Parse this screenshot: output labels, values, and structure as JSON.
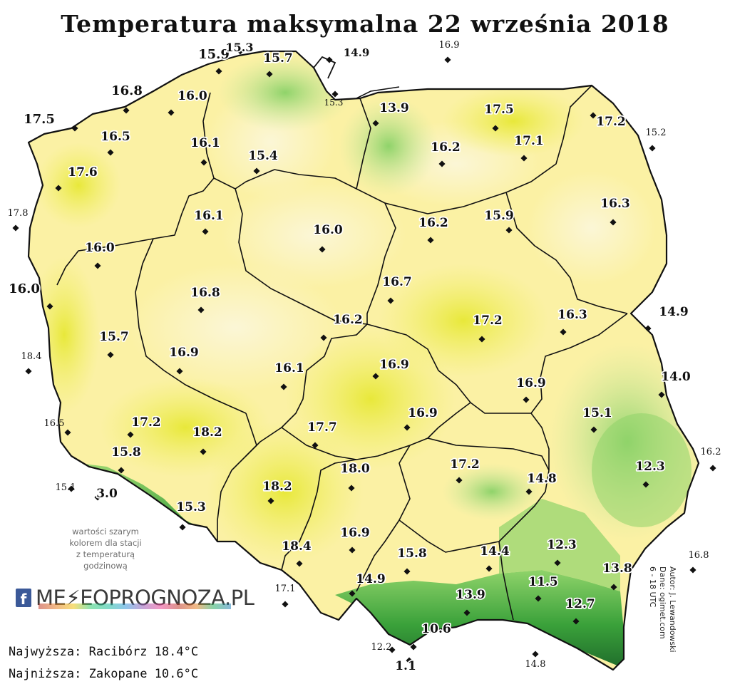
{
  "title": "Temperatura maksymalna 22 września 2018",
  "colors": {
    "background": "#ffffff",
    "land_pale": "#fbf6d6",
    "land_light_yellow": "#fbf1a4",
    "land_yellow": "#f1f06a",
    "land_strong_yellow": "#e8e83a",
    "green_light": "#cfe9a2",
    "green": "#8fd36a",
    "green_dark": "#3aa13a",
    "mountain_dark": "#1f6b2b",
    "mountain_peak": "#ffffff",
    "border": "#111111",
    "label": "#111111",
    "label_halo": "#ffffff",
    "grey_note": "#6e6e6e"
  },
  "station_values": [
    "15.9",
    "15.3",
    "15.7",
    "14.9",
    "16.9",
    "16.8",
    "16.0",
    "15.3",
    "17.5",
    "16.5",
    "13.9",
    "17.5",
    "17.2",
    "15.2",
    "16.1",
    "15.4",
    "16.2",
    "17.1",
    "17.6",
    "17.8",
    "16.1",
    "16.0",
    "16.2",
    "15.9",
    "16.3",
    "16.0",
    "16.8",
    "16.0",
    "16.7",
    "16.2",
    "17.2",
    "16.3",
    "14.9",
    "15.7",
    "18.4",
    "16.9",
    "16.9",
    "14.0",
    "16.1",
    "16.9",
    "16.5",
    "17.2",
    "18.2",
    "17.7",
    "16.9",
    "15.1",
    "15.8",
    "18.0",
    "17.2",
    "16.2",
    "15.1",
    "3.0",
    "18.2",
    "14.8",
    "12.3",
    "15.3",
    "16.9",
    "14.4",
    "12.3",
    "16.8",
    "18.4",
    "15.8",
    "13.8",
    "17.1",
    "14.9",
    "11.5",
    "13.9",
    "12.7",
    "10.6",
    "12.2",
    "14.8",
    "1.1"
  ],
  "note": {
    "lines": [
      "wartości szarym",
      "kolorem dla stacji",
      "z temperaturą",
      "godzinową"
    ]
  },
  "logo": {
    "icon_letter": "f",
    "text": "ME⚡EOPROGNOZA.PL"
  },
  "stats": {
    "highest": "Najwyższa: Racibórz 18.4°C",
    "lowest": "Najniższa: Zakopane 10.6°C"
  },
  "credits": {
    "author": "Autor: J. Lewandowski",
    "data": "Dane: ogimet.com",
    "hours": "6 - 18 UTC"
  }
}
